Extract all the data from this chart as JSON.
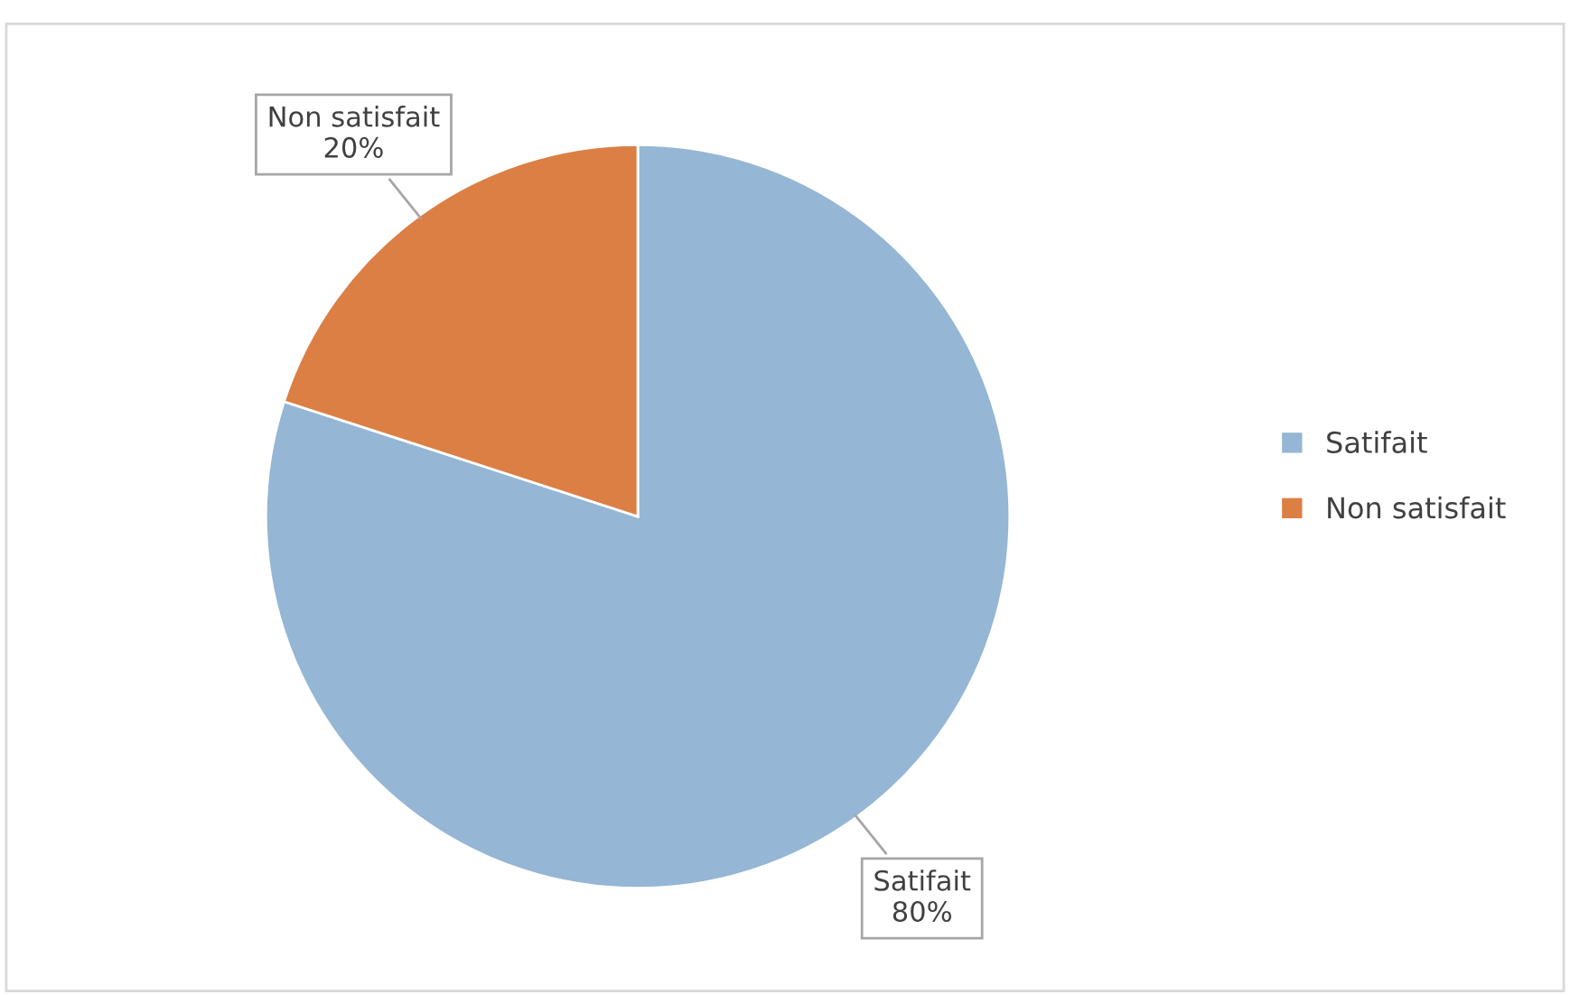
{
  "chart_data": {
    "type": "pie",
    "categories": [
      "Satifait",
      "Non satisfait"
    ],
    "values": [
      80,
      20
    ],
    "colors": [
      "#95b6d4",
      "#dc7f45"
    ],
    "value_labels": [
      "Satifait\n80%",
      "Non satisfait\n20%"
    ],
    "legend": "right"
  }
}
